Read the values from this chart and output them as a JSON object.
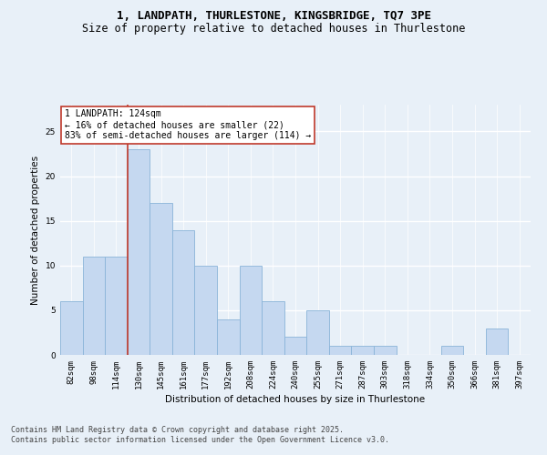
{
  "title_line1": "1, LANDPATH, THURLESTONE, KINGSBRIDGE, TQ7 3PE",
  "title_line2": "Size of property relative to detached houses in Thurlestone",
  "xlabel": "Distribution of detached houses by size in Thurlestone",
  "ylabel": "Number of detached properties",
  "categories": [
    "82sqm",
    "98sqm",
    "114sqm",
    "130sqm",
    "145sqm",
    "161sqm",
    "177sqm",
    "192sqm",
    "208sqm",
    "224sqm",
    "240sqm",
    "255sqm",
    "271sqm",
    "287sqm",
    "303sqm",
    "318sqm",
    "334sqm",
    "350sqm",
    "366sqm",
    "381sqm",
    "397sqm"
  ],
  "values": [
    6,
    11,
    11,
    23,
    17,
    14,
    10,
    4,
    10,
    6,
    2,
    5,
    1,
    1,
    1,
    0,
    0,
    1,
    0,
    3,
    0
  ],
  "bar_color": "#c5d8f0",
  "bar_edge_color": "#8ab4d8",
  "vline_index": 2.5,
  "vline_color": "#c0392b",
  "annotation_text": "1 LANDPATH: 124sqm\n← 16% of detached houses are smaller (22)\n83% of semi-detached houses are larger (114) →",
  "annotation_box_color": "white",
  "annotation_box_edge": "#c0392b",
  "ylim": [
    0,
    28
  ],
  "yticks": [
    0,
    5,
    10,
    15,
    20,
    25
  ],
  "footer_text": "Contains HM Land Registry data © Crown copyright and database right 2025.\nContains public sector information licensed under the Open Government Licence v3.0.",
  "background_color": "#e8f0f8",
  "plot_bg_color": "#e8f0f8",
  "grid_color": "white",
  "title_fontsize": 9,
  "subtitle_fontsize": 8.5,
  "axis_label_fontsize": 7.5,
  "tick_fontsize": 6.5,
  "annotation_fontsize": 7,
  "footer_fontsize": 6
}
